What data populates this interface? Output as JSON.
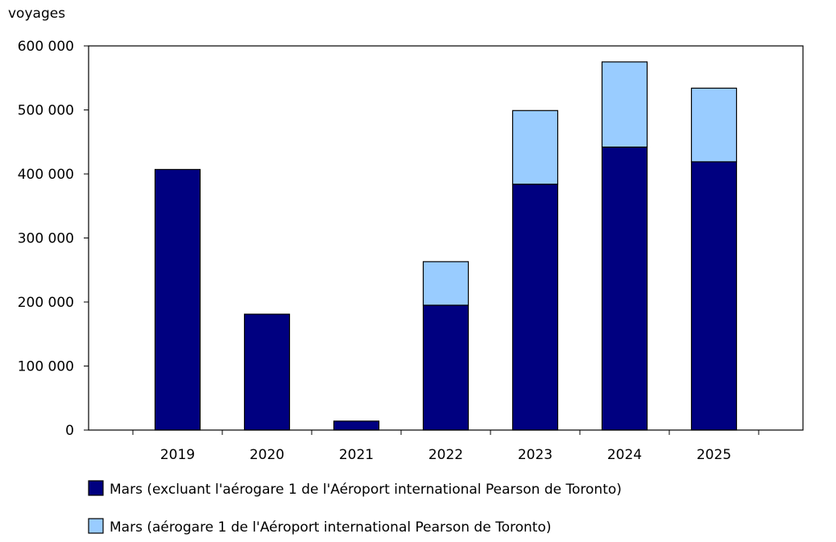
{
  "chart_data": {
    "type": "bar",
    "stacked": true,
    "ylabel": "voyages",
    "ylim": [
      0,
      600000
    ],
    "yticks": [
      0,
      100000,
      200000,
      300000,
      400000,
      500000,
      600000
    ],
    "ytick_labels": [
      "0",
      "100 000",
      "200 000",
      "300 000",
      "400 000",
      "500 000",
      "600 000"
    ],
    "categories": [
      "2019",
      "2020",
      "2021",
      "2022",
      "2023",
      "2024",
      "2025"
    ],
    "series": [
      {
        "name": "Mars (excluant l'aérogare 1 de l'Aéroport international Pearson de Toronto)",
        "color": "#000080",
        "values": [
          407000,
          181000,
          14000,
          195000,
          384000,
          442000,
          419000
        ]
      },
      {
        "name": "Mars (aérogare 1 de l'Aéroport international Pearson de Toronto)",
        "color": "#99ccff",
        "values": [
          0,
          0,
          0,
          68000,
          115000,
          133000,
          115000
        ]
      }
    ],
    "legend_position": "bottom"
  }
}
